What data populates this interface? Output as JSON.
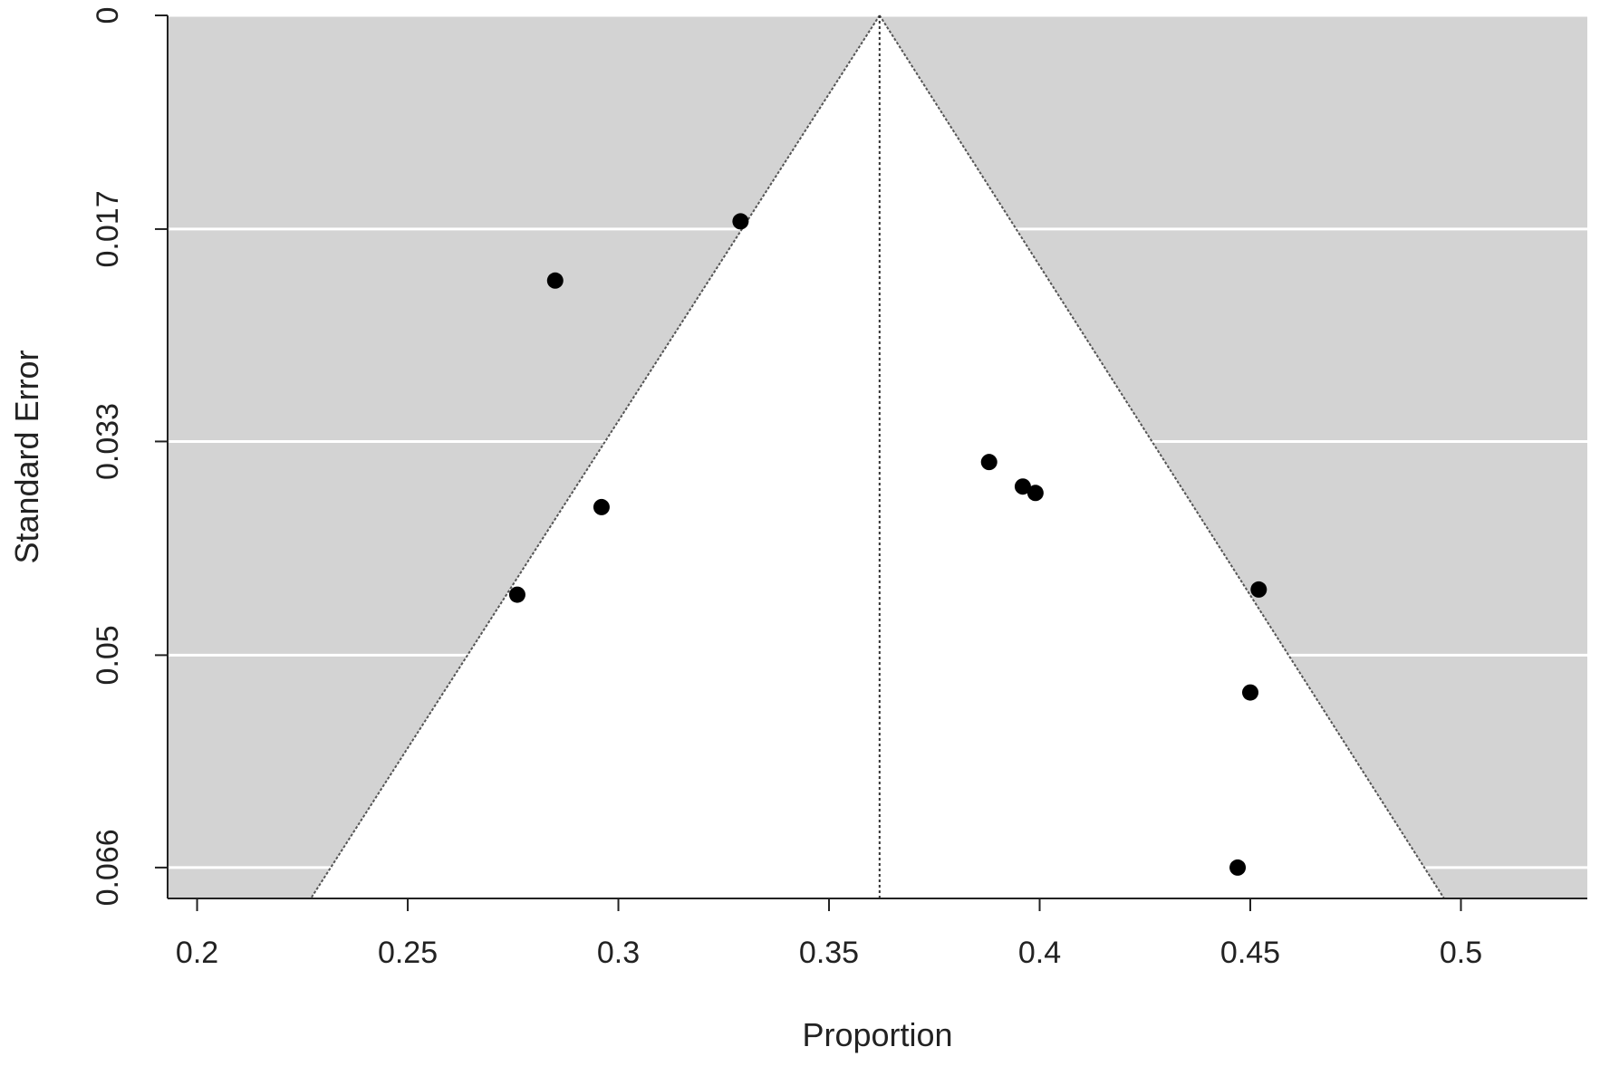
{
  "chart_data": {
    "type": "scatter",
    "subtype": "funnel",
    "xlabel": "Proportion",
    "ylabel": "Standard Error",
    "xlim": [
      0.193,
      0.53
    ],
    "ylim": [
      0,
      0.0686
    ],
    "y_reversed": true,
    "x_ticks": [
      0.2,
      0.25,
      0.3,
      0.35,
      0.4,
      0.45,
      0.5
    ],
    "x_tick_labels": [
      "0.2",
      "0.25",
      "0.3",
      "0.35",
      "0.4",
      "0.45",
      "0.5"
    ],
    "y_ticks": [
      0,
      0.0166,
      0.0331,
      0.0497,
      0.0662
    ],
    "y_tick_labels": [
      "0",
      "0.017",
      "0.033",
      "0.05",
      "0.066"
    ],
    "grid": true,
    "background": "#d3d3d3",
    "funnel_fill": "#ffffff",
    "funnel_apex": {
      "x": 0.362,
      "y": 0
    },
    "funnel_bottom": {
      "y": 0.0686,
      "x_left": 0.227,
      "x_right": 0.496
    },
    "reference_line_x": 0.362,
    "points": [
      {
        "x": 0.329,
        "y": 0.016
      },
      {
        "x": 0.285,
        "y": 0.0206
      },
      {
        "x": 0.388,
        "y": 0.0347
      },
      {
        "x": 0.396,
        "y": 0.0366
      },
      {
        "x": 0.399,
        "y": 0.0371
      },
      {
        "x": 0.296,
        "y": 0.0382
      },
      {
        "x": 0.276,
        "y": 0.045
      },
      {
        "x": 0.452,
        "y": 0.0446
      },
      {
        "x": 0.45,
        "y": 0.0526
      },
      {
        "x": 0.447,
        "y": 0.0662
      }
    ],
    "point_color": "#000000"
  }
}
